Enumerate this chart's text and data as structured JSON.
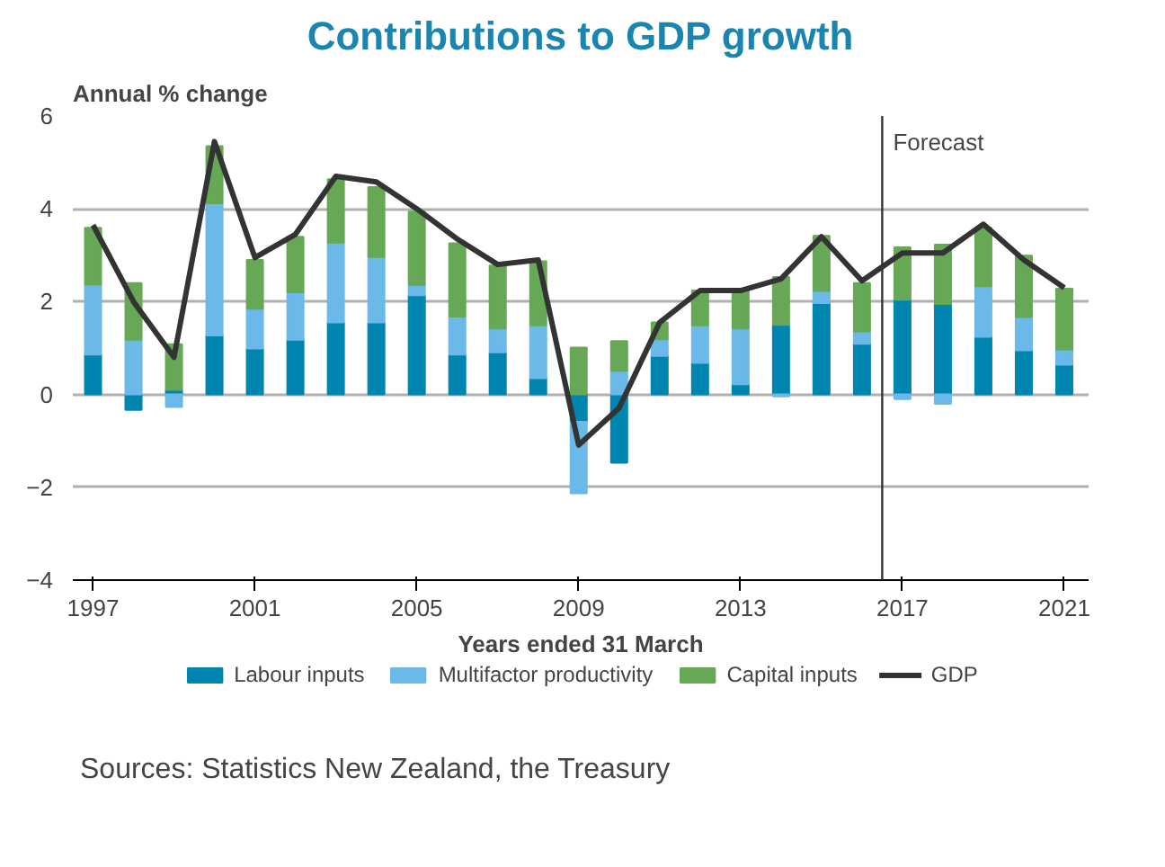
{
  "chart_data": {
    "type": "bar",
    "stacked": true,
    "title": "Contributions to GDP growth",
    "ylabel": "Annual  % change",
    "xlabel": "Years ended 31 March",
    "x": [
      1997,
      1998,
      1999,
      2000,
      2001,
      2002,
      2003,
      2004,
      2005,
      2006,
      2007,
      2008,
      2009,
      2010,
      2011,
      2012,
      2013,
      2014,
      2015,
      2016,
      2017,
      2018,
      2019,
      2020,
      2021
    ],
    "series": [
      {
        "name": "Labour inputs",
        "color": "#0085b0",
        "values": [
          0.86,
          -0.33,
          0.1,
          1.27,
          0.99,
          1.18,
          1.55,
          1.55,
          2.14,
          0.86,
          0.91,
          0.35,
          -0.59,
          -1.47,
          0.83,
          0.68,
          0.22,
          1.5,
          1.97,
          1.09,
          2.04,
          1.95,
          1.24,
          0.95,
          0.64
        ]
      },
      {
        "name": "Multifactor productivity",
        "color": "#6bb9e8",
        "values": [
          1.51,
          1.18,
          -0.27,
          2.85,
          0.86,
          1.02,
          1.72,
          1.41,
          0.22,
          0.82,
          0.51,
          1.14,
          -1.54,
          0.51,
          0.36,
          0.81,
          1.2,
          -0.04,
          0.26,
          0.27,
          -0.1,
          -0.2,
          1.09,
          0.72,
          0.33
        ]
      },
      {
        "name": "Capital inputs",
        "color": "#66a855",
        "values": [
          1.22,
          1.22,
          0.98,
          1.23,
          1.05,
          1.2,
          1.37,
          1.51,
          1.58,
          1.58,
          1.36,
          1.38,
          1.01,
          0.64,
          0.36,
          0.75,
          0.82,
          1.03,
          1.19,
          1.04,
          1.13,
          1.28,
          1.26,
          1.32,
          1.31
        ]
      },
      {
        "name": "GDP",
        "type": "line",
        "color": "#333333",
        "values": [
          3.65,
          2.0,
          0.8,
          5.45,
          2.95,
          3.45,
          4.7,
          4.58,
          4.0,
          3.35,
          2.8,
          2.9,
          -1.09,
          -0.29,
          1.55,
          2.24,
          2.24,
          2.49,
          3.4,
          2.45,
          3.05,
          3.05,
          3.67,
          2.9,
          2.3
        ]
      }
    ],
    "xlim": [
      1996.5,
      2021.6
    ],
    "xticks": [
      1997,
      2001,
      2005,
      2009,
      2013,
      2017,
      2021
    ],
    "ylim": [
      -4,
      6
    ],
    "yticks": [
      -4,
      -2,
      0,
      2,
      4,
      6
    ],
    "grid": "y",
    "legend": "bottom",
    "ref_lines": [
      {
        "axis": "x",
        "value": 2016.5,
        "label": "Forecast",
        "color": "#333333"
      }
    ],
    "annotations": [
      "Sources: Statistics New Zealand, the Treasury"
    ]
  }
}
